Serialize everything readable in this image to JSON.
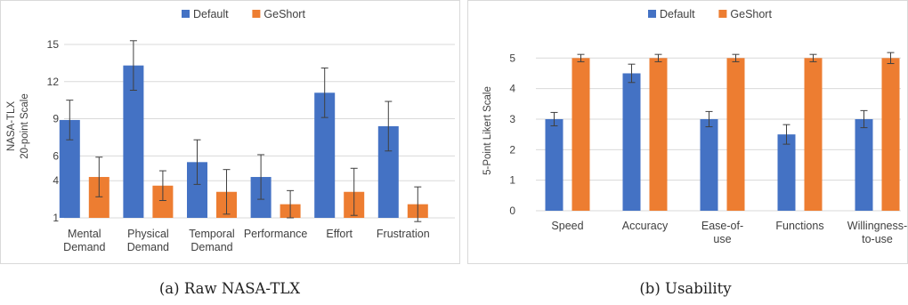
{
  "colors": {
    "default": "#4472c4",
    "geshort": "#ed7d31"
  },
  "chart_data": [
    {
      "type": "bar",
      "caption": "(a) Raw NASA-TLX",
      "ylabel": [
        "NASA-TLX",
        "20-point Scale"
      ],
      "yticks": [
        1,
        4,
        6,
        9,
        12,
        15
      ],
      "ylim": [
        1,
        15.5
      ],
      "grid": true,
      "legend": "top",
      "categories": [
        [
          "Mental",
          "Demand"
        ],
        [
          "Physical",
          "Demand"
        ],
        [
          "Temporal",
          "Demand"
        ],
        [
          "Performance"
        ],
        [
          "Effort"
        ],
        [
          "Frustration"
        ]
      ],
      "series": [
        {
          "name": "Default",
          "color": "default",
          "values": [
            8.9,
            13.3,
            5.5,
            4.3,
            11.1,
            8.4
          ],
          "errors": [
            1.6,
            2.0,
            1.8,
            1.8,
            2.0,
            2.0
          ]
        },
        {
          "name": "GeShort",
          "color": "geshort",
          "values": [
            4.3,
            3.6,
            3.1,
            2.1,
            3.1,
            2.1
          ],
          "errors": [
            1.6,
            1.2,
            1.8,
            1.1,
            1.9,
            1.4
          ]
        }
      ]
    },
    {
      "type": "bar",
      "caption": "(b) Usability",
      "ylabel": [
        "5-Point Likert Scale"
      ],
      "yticks": [
        0,
        1,
        2,
        3,
        4,
        5
      ],
      "ylim": [
        0,
        5.3
      ],
      "grid": true,
      "legend": "top",
      "categories": [
        [
          "Speed"
        ],
        [
          "Accuracy"
        ],
        [
          "Ease-of-",
          "use"
        ],
        [
          "Functions"
        ],
        [
          "Willingness-",
          "to-use"
        ]
      ],
      "series": [
        {
          "name": "Default",
          "color": "default",
          "values": [
            3.0,
            4.5,
            3.0,
            2.5,
            3.0
          ],
          "errors": [
            0.22,
            0.3,
            0.25,
            0.32,
            0.28
          ]
        },
        {
          "name": "GeShort",
          "color": "geshort",
          "values": [
            5.0,
            5.0,
            5.0,
            5.0,
            5.0
          ],
          "errors": [
            0.12,
            0.12,
            0.12,
            0.12,
            0.18
          ]
        }
      ]
    }
  ]
}
